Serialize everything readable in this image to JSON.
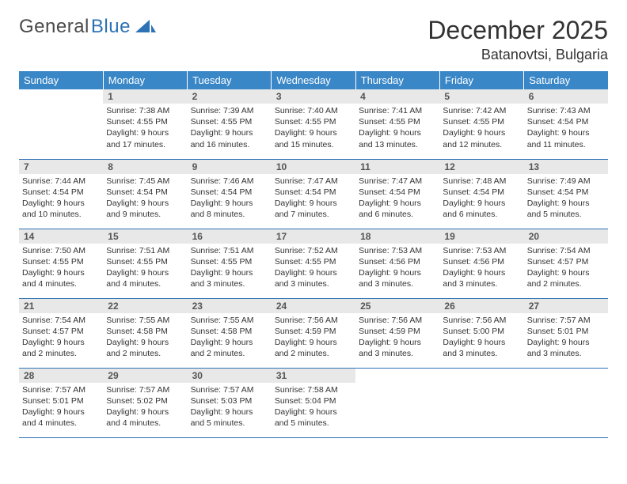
{
  "logo": {
    "text_gray": "General",
    "text_blue": "Blue",
    "accent_color": "#2d72b5"
  },
  "title": "December 2025",
  "location": "Batanovtsi, Bulgaria",
  "weekdays": [
    "Sunday",
    "Monday",
    "Tuesday",
    "Wednesday",
    "Thursday",
    "Friday",
    "Saturday"
  ],
  "colors": {
    "header_bg": "#3a87c7",
    "header_text": "#ffffff",
    "daynum_bg": "#e8e8e8",
    "row_border": "#2d72b5",
    "body_text": "#333333"
  },
  "weeks": [
    [
      {
        "n": "",
        "sunrise": "",
        "sunset": "",
        "daylight": ""
      },
      {
        "n": "1",
        "sunrise": "Sunrise: 7:38 AM",
        "sunset": "Sunset: 4:55 PM",
        "daylight": "Daylight: 9 hours and 17 minutes."
      },
      {
        "n": "2",
        "sunrise": "Sunrise: 7:39 AM",
        "sunset": "Sunset: 4:55 PM",
        "daylight": "Daylight: 9 hours and 16 minutes."
      },
      {
        "n": "3",
        "sunrise": "Sunrise: 7:40 AM",
        "sunset": "Sunset: 4:55 PM",
        "daylight": "Daylight: 9 hours and 15 minutes."
      },
      {
        "n": "4",
        "sunrise": "Sunrise: 7:41 AM",
        "sunset": "Sunset: 4:55 PM",
        "daylight": "Daylight: 9 hours and 13 minutes."
      },
      {
        "n": "5",
        "sunrise": "Sunrise: 7:42 AM",
        "sunset": "Sunset: 4:55 PM",
        "daylight": "Daylight: 9 hours and 12 minutes."
      },
      {
        "n": "6",
        "sunrise": "Sunrise: 7:43 AM",
        "sunset": "Sunset: 4:54 PM",
        "daylight": "Daylight: 9 hours and 11 minutes."
      }
    ],
    [
      {
        "n": "7",
        "sunrise": "Sunrise: 7:44 AM",
        "sunset": "Sunset: 4:54 PM",
        "daylight": "Daylight: 9 hours and 10 minutes."
      },
      {
        "n": "8",
        "sunrise": "Sunrise: 7:45 AM",
        "sunset": "Sunset: 4:54 PM",
        "daylight": "Daylight: 9 hours and 9 minutes."
      },
      {
        "n": "9",
        "sunrise": "Sunrise: 7:46 AM",
        "sunset": "Sunset: 4:54 PM",
        "daylight": "Daylight: 9 hours and 8 minutes."
      },
      {
        "n": "10",
        "sunrise": "Sunrise: 7:47 AM",
        "sunset": "Sunset: 4:54 PM",
        "daylight": "Daylight: 9 hours and 7 minutes."
      },
      {
        "n": "11",
        "sunrise": "Sunrise: 7:47 AM",
        "sunset": "Sunset: 4:54 PM",
        "daylight": "Daylight: 9 hours and 6 minutes."
      },
      {
        "n": "12",
        "sunrise": "Sunrise: 7:48 AM",
        "sunset": "Sunset: 4:54 PM",
        "daylight": "Daylight: 9 hours and 6 minutes."
      },
      {
        "n": "13",
        "sunrise": "Sunrise: 7:49 AM",
        "sunset": "Sunset: 4:54 PM",
        "daylight": "Daylight: 9 hours and 5 minutes."
      }
    ],
    [
      {
        "n": "14",
        "sunrise": "Sunrise: 7:50 AM",
        "sunset": "Sunset: 4:55 PM",
        "daylight": "Daylight: 9 hours and 4 minutes."
      },
      {
        "n": "15",
        "sunrise": "Sunrise: 7:51 AM",
        "sunset": "Sunset: 4:55 PM",
        "daylight": "Daylight: 9 hours and 4 minutes."
      },
      {
        "n": "16",
        "sunrise": "Sunrise: 7:51 AM",
        "sunset": "Sunset: 4:55 PM",
        "daylight": "Daylight: 9 hours and 3 minutes."
      },
      {
        "n": "17",
        "sunrise": "Sunrise: 7:52 AM",
        "sunset": "Sunset: 4:55 PM",
        "daylight": "Daylight: 9 hours and 3 minutes."
      },
      {
        "n": "18",
        "sunrise": "Sunrise: 7:53 AM",
        "sunset": "Sunset: 4:56 PM",
        "daylight": "Daylight: 9 hours and 3 minutes."
      },
      {
        "n": "19",
        "sunrise": "Sunrise: 7:53 AM",
        "sunset": "Sunset: 4:56 PM",
        "daylight": "Daylight: 9 hours and 3 minutes."
      },
      {
        "n": "20",
        "sunrise": "Sunrise: 7:54 AM",
        "sunset": "Sunset: 4:57 PM",
        "daylight": "Daylight: 9 hours and 2 minutes."
      }
    ],
    [
      {
        "n": "21",
        "sunrise": "Sunrise: 7:54 AM",
        "sunset": "Sunset: 4:57 PM",
        "daylight": "Daylight: 9 hours and 2 minutes."
      },
      {
        "n": "22",
        "sunrise": "Sunrise: 7:55 AM",
        "sunset": "Sunset: 4:58 PM",
        "daylight": "Daylight: 9 hours and 2 minutes."
      },
      {
        "n": "23",
        "sunrise": "Sunrise: 7:55 AM",
        "sunset": "Sunset: 4:58 PM",
        "daylight": "Daylight: 9 hours and 2 minutes."
      },
      {
        "n": "24",
        "sunrise": "Sunrise: 7:56 AM",
        "sunset": "Sunset: 4:59 PM",
        "daylight": "Daylight: 9 hours and 2 minutes."
      },
      {
        "n": "25",
        "sunrise": "Sunrise: 7:56 AM",
        "sunset": "Sunset: 4:59 PM",
        "daylight": "Daylight: 9 hours and 3 minutes."
      },
      {
        "n": "26",
        "sunrise": "Sunrise: 7:56 AM",
        "sunset": "Sunset: 5:00 PM",
        "daylight": "Daylight: 9 hours and 3 minutes."
      },
      {
        "n": "27",
        "sunrise": "Sunrise: 7:57 AM",
        "sunset": "Sunset: 5:01 PM",
        "daylight": "Daylight: 9 hours and 3 minutes."
      }
    ],
    [
      {
        "n": "28",
        "sunrise": "Sunrise: 7:57 AM",
        "sunset": "Sunset: 5:01 PM",
        "daylight": "Daylight: 9 hours and 4 minutes."
      },
      {
        "n": "29",
        "sunrise": "Sunrise: 7:57 AM",
        "sunset": "Sunset: 5:02 PM",
        "daylight": "Daylight: 9 hours and 4 minutes."
      },
      {
        "n": "30",
        "sunrise": "Sunrise: 7:57 AM",
        "sunset": "Sunset: 5:03 PM",
        "daylight": "Daylight: 9 hours and 5 minutes."
      },
      {
        "n": "31",
        "sunrise": "Sunrise: 7:58 AM",
        "sunset": "Sunset: 5:04 PM",
        "daylight": "Daylight: 9 hours and 5 minutes."
      },
      {
        "n": "",
        "sunrise": "",
        "sunset": "",
        "daylight": ""
      },
      {
        "n": "",
        "sunrise": "",
        "sunset": "",
        "daylight": ""
      },
      {
        "n": "",
        "sunrise": "",
        "sunset": "",
        "daylight": ""
      }
    ]
  ]
}
